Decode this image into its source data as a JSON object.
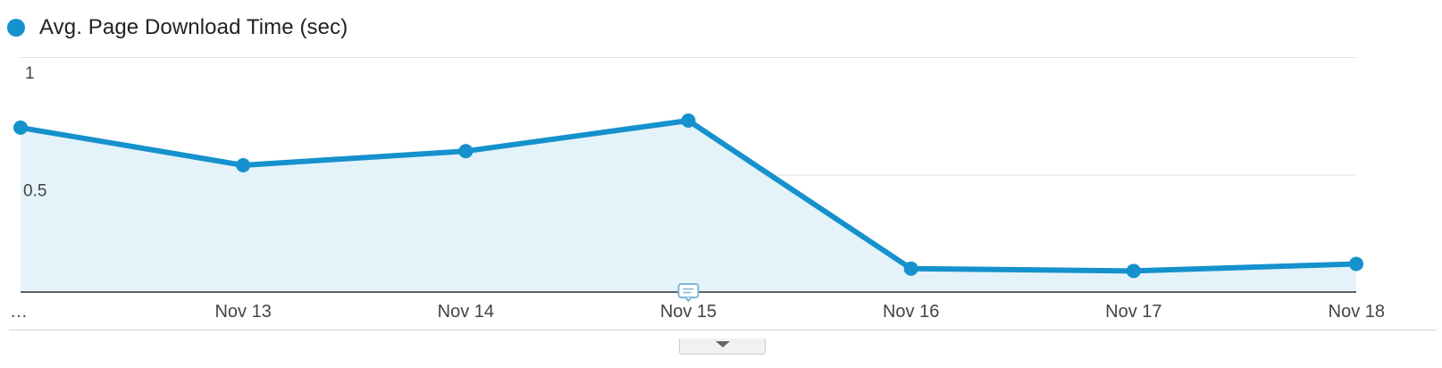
{
  "legend": {
    "label": "Avg. Page Download Time (sec)"
  },
  "colors": {
    "line": "#1591cd",
    "area": "#e4f2f9",
    "grid": "#e2e2e2",
    "baseline": "#333333",
    "annotation_icon": "#7fb6d8"
  },
  "chart_data": {
    "type": "area",
    "title": "",
    "xlabel": "",
    "ylabel": "",
    "categories": [
      "…",
      "Nov 13",
      "Nov 14",
      "Nov 15",
      "Nov 16",
      "Nov 17",
      "Nov 18"
    ],
    "series": [
      {
        "name": "Avg. Page Download Time (sec)",
        "values": [
          0.7,
          0.54,
          0.6,
          0.73,
          0.1,
          0.09,
          0.12
        ]
      }
    ],
    "y_ticks": [
      "1",
      "0.5"
    ],
    "ylim": [
      0,
      1
    ],
    "grid": true,
    "legend_position": "top-left",
    "annotation_icon": "comment-icon"
  }
}
